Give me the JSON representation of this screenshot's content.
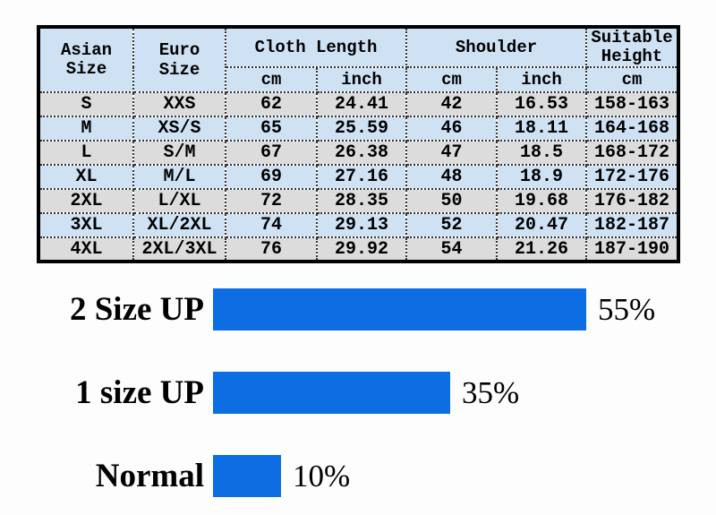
{
  "colors": {
    "page_bg": "#fdfdfd",
    "header_blue": "#cfe2f4",
    "row_gray": "#dcdcdc",
    "bar_blue": "#0d6ee4",
    "table_border": "#000000"
  },
  "size_table": {
    "header": {
      "asian_size": "Asian\nSize",
      "euro_size": "Euro Size",
      "cloth_length": "Cloth Length",
      "shoulder": "Shoulder",
      "suitable_height": "Suitable\nHeight",
      "units": {
        "cloth_cm": "cm",
        "cloth_inch": "inch",
        "shoulder_cm": "cm",
        "shoulder_inch": "inch",
        "height_cm": "cm"
      }
    },
    "rows": [
      [
        "S",
        "XXS",
        "62",
        "24.41",
        "42",
        "16.53",
        "158-163"
      ],
      [
        "M",
        "XS/S",
        "65",
        "25.59",
        "46",
        "18.11",
        "164-168"
      ],
      [
        "L",
        "S/M",
        "67",
        "26.38",
        "47",
        "18.5",
        "168-172"
      ],
      [
        "XL",
        "M/L",
        "69",
        "27.16",
        "48",
        "18.9",
        "172-176"
      ],
      [
        "2XL",
        "L/XL",
        "72",
        "28.35",
        "50",
        "19.68",
        "176-182"
      ],
      [
        "3XL",
        "XL/2XL",
        "74",
        "29.13",
        "52",
        "20.47",
        "182-187"
      ],
      [
        "4XL",
        "2XL/3XL",
        "76",
        "29.92",
        "54",
        "21.26",
        "187-190"
      ]
    ]
  },
  "chart_data": {
    "type": "bar",
    "orientation": "horizontal",
    "title": "",
    "categories": [
      "2 Size UP",
      "1 size UP",
      "Normal"
    ],
    "values": [
      55,
      35,
      10
    ],
    "value_labels": [
      "55%",
      "35%",
      "10%"
    ],
    "xlim": [
      0,
      60
    ],
    "grid": false,
    "legend": false,
    "bar_color": "#0d6ee4",
    "value_label_position": "right-of-bar"
  }
}
